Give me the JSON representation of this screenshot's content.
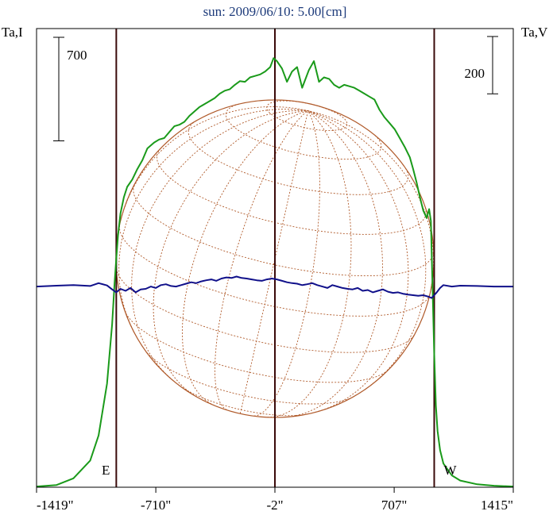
{
  "chart_data": {
    "type": "line",
    "title": "sun: 2009/06/10: 5.00[cm]",
    "left_axis_label": "Ta,I",
    "right_axis_label": "Ta,V",
    "x_unit": "arcsec",
    "x_ticks": [
      {
        "value": -1419,
        "label": "-1419\""
      },
      {
        "value": -710,
        "label": "-710\""
      },
      {
        "value": -2,
        "label": "-2\""
      },
      {
        "value": 707,
        "label": "707\""
      },
      {
        "value": 1415,
        "label": "1415\""
      }
    ],
    "xlim": [
      -1419,
      1415
    ],
    "ylim_I": [
      0,
      3100
    ],
    "ylim_V": [
      -700,
      900
    ],
    "limb_markers": [
      {
        "label": "E",
        "x": -945
      },
      {
        "label": "W",
        "x": 945
      }
    ],
    "center_line_x": -2,
    "scale_bars": [
      {
        "series": "I",
        "label": "700",
        "value": 700
      },
      {
        "series": "V",
        "label": "200",
        "value": 200
      }
    ],
    "disk": {
      "radius_arcsec": 945,
      "grid": "heliographic latitude/longitude"
    },
    "series": [
      {
        "color": "#1a9a1a",
        "axis": "I",
        "x": [
          -1419,
          -1300,
          -1200,
          -1100,
          -1050,
          -1000,
          -970,
          -955,
          -945,
          -935,
          -920,
          -900,
          -880,
          -850,
          -820,
          -790,
          -760,
          -720,
          -690,
          -660,
          -630,
          -600,
          -570,
          -540,
          -510,
          -480,
          -450,
          -420,
          -390,
          -360,
          -330,
          -300,
          -270,
          -240,
          -210,
          -180,
          -150,
          -120,
          -90,
          -60,
          -30,
          -10,
          10,
          40,
          70,
          100,
          130,
          160,
          200,
          230,
          260,
          290,
          320,
          350,
          380,
          410,
          440,
          470,
          500,
          530,
          560,
          590,
          620,
          650,
          680,
          710,
          740,
          770,
          800,
          820,
          840,
          860,
          880,
          900,
          915,
          925,
          935,
          945,
          955,
          965,
          980,
          1000,
          1050,
          1100,
          1200,
          1300,
          1415
        ],
        "values": [
          5,
          15,
          60,
          180,
          350,
          700,
          1100,
          1380,
          1550,
          1700,
          1850,
          1960,
          2030,
          2080,
          2150,
          2210,
          2290,
          2330,
          2350,
          2360,
          2400,
          2440,
          2450,
          2470,
          2510,
          2540,
          2570,
          2590,
          2610,
          2630,
          2660,
          2680,
          2690,
          2720,
          2745,
          2740,
          2770,
          2780,
          2790,
          2810,
          2840,
          2900,
          2880,
          2830,
          2740,
          2810,
          2840,
          2700,
          2820,
          2880,
          2740,
          2770,
          2760,
          2720,
          2700,
          2720,
          2710,
          2700,
          2680,
          2660,
          2640,
          2620,
          2550,
          2500,
          2460,
          2420,
          2360,
          2300,
          2230,
          2150,
          2060,
          1960,
          1870,
          1820,
          1880,
          1800,
          1350,
          900,
          550,
          380,
          250,
          160,
          80,
          45,
          20,
          10,
          5
        ]
      },
      {
        "color": "#10108a",
        "axis": "V",
        "x": [
          -1419,
          -1300,
          -1200,
          -1100,
          -1050,
          -1000,
          -970,
          -945,
          -920,
          -890,
          -860,
          -830,
          -800,
          -770,
          -740,
          -710,
          -680,
          -650,
          -620,
          -590,
          -560,
          -530,
          -500,
          -470,
          -440,
          -410,
          -380,
          -350,
          -320,
          -290,
          -260,
          -230,
          -200,
          -170,
          -140,
          -110,
          -80,
          -50,
          -20,
          10,
          40,
          70,
          100,
          130,
          160,
          190,
          220,
          250,
          280,
          310,
          340,
          370,
          400,
          430,
          460,
          490,
          520,
          550,
          580,
          610,
          640,
          670,
          700,
          730,
          760,
          790,
          820,
          850,
          880,
          910,
          930,
          945,
          960,
          980,
          1000,
          1050,
          1100,
          1200,
          1300,
          1415
        ],
        "values": [
          0,
          3,
          5,
          2,
          12,
          4,
          -10,
          -20,
          -8,
          -15,
          -5,
          -20,
          -10,
          -8,
          0,
          -5,
          5,
          8,
          2,
          0,
          5,
          10,
          15,
          12,
          18,
          22,
          25,
          20,
          28,
          32,
          30,
          35,
          30,
          28,
          25,
          22,
          20,
          25,
          28,
          25,
          20,
          15,
          12,
          10,
          5,
          8,
          12,
          5,
          0,
          -5,
          5,
          0,
          -5,
          -8,
          -10,
          -5,
          -15,
          -12,
          -20,
          -15,
          -10,
          -18,
          -22,
          -20,
          -25,
          -28,
          -30,
          -32,
          -30,
          -35,
          -40,
          -30,
          -20,
          -5,
          5,
          0,
          3,
          2,
          0,
          0
        ]
      }
    ],
    "colors": {
      "frame": "#000000",
      "limb_lines": "#3a0a0a",
      "disk": "#b05a2a",
      "title": "#1c3a7a"
    }
  }
}
